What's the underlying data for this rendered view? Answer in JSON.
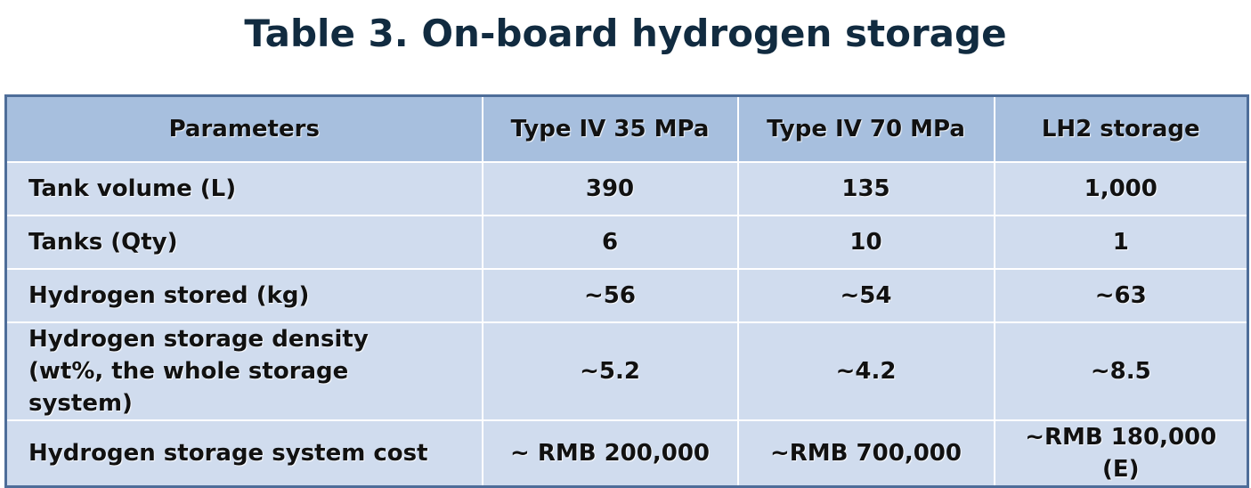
{
  "title": "Table 3. On-board hydrogen storage",
  "table": {
    "header": [
      "Parameters",
      "Type IV 35 MPa",
      "Type IV 70 MPa",
      "LH2 storage"
    ],
    "rows": [
      [
        "Tank volume (L)",
        "390",
        "135",
        "1,000"
      ],
      [
        "Tanks (Qty)",
        "6",
        "10",
        "1"
      ],
      [
        "Hydrogen stored (kg)",
        "~56",
        "~54",
        "~63"
      ],
      [
        "Hydrogen storage density\n(wt%, the whole storage system)",
        "~5.2",
        "~4.2",
        "~8.5"
      ],
      [
        "Hydrogen storage system cost",
        "~ RMB 200,000",
        "~RMB 700,000",
        "~RMB 180,000 (E)"
      ]
    ]
  }
}
